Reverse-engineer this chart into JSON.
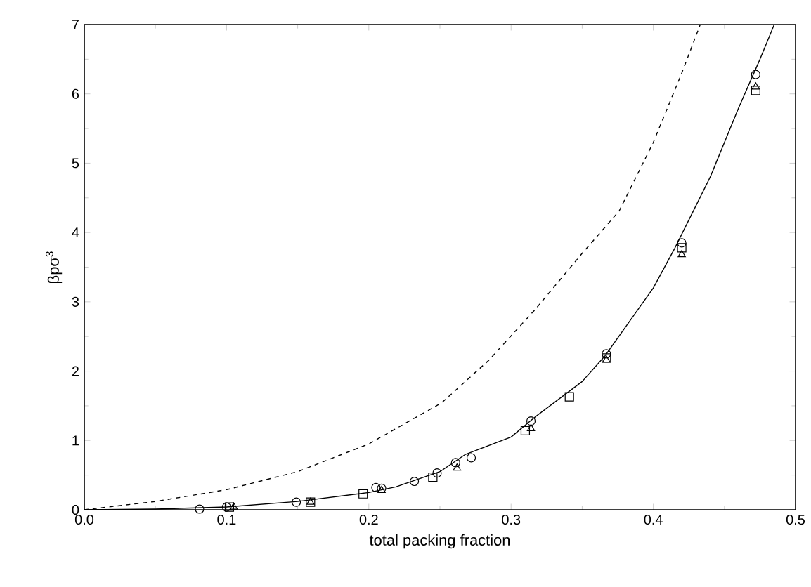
{
  "chart_data": {
    "type": "scatter",
    "xlabel": "total packing fraction",
    "ylabel": "βpσ$^{3}$",
    "xlim": [
      0,
      0.5
    ],
    "ylim": [
      0,
      7
    ],
    "xticks": [
      {
        "value": 0,
        "label": "0.0"
      },
      0.1,
      0.2,
      0.3,
      0.4,
      0.5
    ],
    "yticks": [
      0,
      1,
      2,
      3,
      4,
      5,
      6,
      7
    ],
    "grid": false,
    "series": [
      {
        "marker": "circle",
        "color": "#000000",
        "x": [
          0.081,
          0.1,
          0.149,
          0.205,
          0.209,
          0.232,
          0.248,
          0.261,
          0.272,
          0.314,
          0.367,
          0.42,
          0.472
        ],
        "values": [
          0.01,
          0.04,
          0.11,
          0.32,
          0.31,
          0.41,
          0.53,
          0.68,
          0.75,
          1.28,
          2.25,
          3.85,
          6.28
        ]
      },
      {
        "marker": "square",
        "color": "#000000",
        "x": [
          0.102,
          0.159,
          0.196,
          0.245,
          0.31,
          0.341,
          0.367,
          0.42,
          0.472
        ],
        "values": [
          0.04,
          0.11,
          0.23,
          0.47,
          1.14,
          1.63,
          2.19,
          3.78,
          6.05
        ]
      },
      {
        "marker": "triangle",
        "color": "#000000",
        "x": [
          0.105,
          0.159,
          0.209,
          0.262,
          0.314,
          0.367,
          0.42,
          0.472
        ],
        "values": [
          0.04,
          0.11,
          0.28,
          0.6,
          1.17,
          2.16,
          3.68,
          6.1
        ]
      },
      {
        "type": "line",
        "marker": "none",
        "line_style": "solid",
        "color": "#000000",
        "x": [
          0,
          0.05,
          0.1,
          0.15,
          0.2,
          0.219,
          0.25,
          0.268,
          0.3,
          0.317,
          0.35,
          0.366,
          0.4,
          0.415,
          0.44,
          0.46,
          0.475,
          0.485
        ],
        "values": [
          0,
          0.01,
          0.04,
          0.12,
          0.25,
          0.33,
          0.55,
          0.8,
          1.05,
          1.34,
          1.85,
          2.22,
          3.2,
          3.77,
          4.8,
          5.8,
          6.5,
          7
        ]
      },
      {
        "type": "line",
        "marker": "none",
        "line_style": "dashed",
        "color": "#000000",
        "x": [
          0,
          0.05,
          0.1,
          0.15,
          0.2,
          0.251,
          0.284,
          0.317,
          0.35,
          0.376,
          0.4,
          0.42,
          0.433
        ],
        "values": [
          0,
          0.12,
          0.29,
          0.55,
          0.95,
          1.54,
          2.15,
          2.89,
          3.7,
          4.31,
          5.3,
          6.3,
          7
        ]
      }
    ]
  }
}
